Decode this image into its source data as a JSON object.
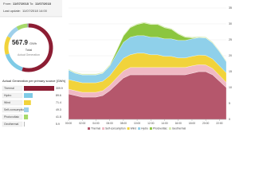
{
  "header": {
    "from_label": "From:",
    "from": "11/07/2018",
    "to_label": "To:",
    "to": "11/07/2018",
    "update_label": "Last update:",
    "update": "11/07/2018 14:00"
  },
  "chart_data": [
    {
      "type": "donut",
      "title": "Actual Generation per primary source [GWh]",
      "total": 567.9,
      "total_unit": "GWh",
      "total_caption": "Total",
      "total_subcaption": "Actual Generation",
      "categories": [
        "Thermal",
        "Hydro",
        "Wind",
        "Self-consumption",
        "Photovoltaic",
        "Geothermal"
      ],
      "values": [
        309.9,
        89.6,
        71.4,
        49.3,
        41.8,
        5.9
      ],
      "colors": [
        "#8c1d33",
        "#7fcbe6",
        "#f1d33b",
        "#9fd0ea",
        "#a6d96a",
        "#9e9e9e"
      ]
    },
    {
      "type": "area",
      "stacked": true,
      "grid": true,
      "categories": [
        "00:00",
        null,
        "02:00",
        null,
        "04:00",
        null,
        "06:00",
        null,
        "08:00",
        null,
        "10:00",
        null,
        "12:00",
        null,
        "14:00",
        null,
        "16:00",
        null,
        "18:00",
        null,
        "20:00",
        null,
        "22:00",
        null
      ],
      "ylim": [
        0,
        35
      ],
      "yticks": [
        0,
        5,
        10,
        15,
        20,
        25,
        30,
        35
      ],
      "series": [
        {
          "name": "Thermal",
          "color": "#b5576c",
          "values": [
            8,
            7.5,
            7,
            7,
            7,
            7.5,
            9,
            11,
            13,
            14,
            14,
            14,
            14,
            14,
            14,
            14,
            14,
            14,
            14.5,
            15,
            15,
            14,
            12,
            10
          ]
        },
        {
          "name": "Self-consumption",
          "color": "#f0b9c4",
          "values": [
            1.5,
            1.5,
            1.5,
            1.5,
            1.5,
            1.5,
            1.7,
            2,
            2.2,
            2.3,
            2.3,
            2.3,
            2.3,
            2.3,
            2.3,
            2.3,
            2.3,
            2.3,
            2.3,
            2.2,
            2.1,
            2,
            1.8,
            1.6
          ]
        },
        {
          "name": "Wind",
          "color": "#f1d33b",
          "values": [
            3,
            3,
            3,
            3,
            3,
            3,
            3,
            3.5,
            4,
            4,
            4.5,
            4.5,
            4,
            4,
            3.5,
            3.5,
            3,
            3,
            3,
            3,
            3,
            3,
            3,
            3
          ]
        },
        {
          "name": "Hydro",
          "color": "#8fd0ea",
          "values": [
            3,
            2.5,
            2.5,
            2.5,
            2.5,
            2.5,
            3,
            4,
            5,
            5.5,
            5.5,
            5.5,
            5.5,
            5.5,
            5.5,
            5.5,
            5.5,
            5.5,
            5.5,
            5.5,
            5.5,
            5,
            4.5,
            3.5
          ]
        },
        {
          "name": "Photovoltaic",
          "color": "#8cc63f",
          "values": [
            0,
            0,
            0,
            0,
            0,
            0,
            0.2,
            1,
            2,
            3,
            3.5,
            4,
            4,
            4,
            3.5,
            3,
            2,
            1,
            0.3,
            0,
            0,
            0,
            0,
            0
          ]
        },
        {
          "name": "Geothermal",
          "color": "#d6ecb0",
          "values": [
            0.3,
            0.3,
            0.3,
            0.3,
            0.3,
            0.3,
            0.3,
            0.3,
            0.3,
            0.3,
            0.3,
            0.3,
            0.3,
            0.3,
            0.3,
            0.3,
            0.3,
            0.3,
            0.3,
            0.3,
            0.3,
            0.3,
            0.3,
            0.3
          ]
        }
      ]
    }
  ]
}
